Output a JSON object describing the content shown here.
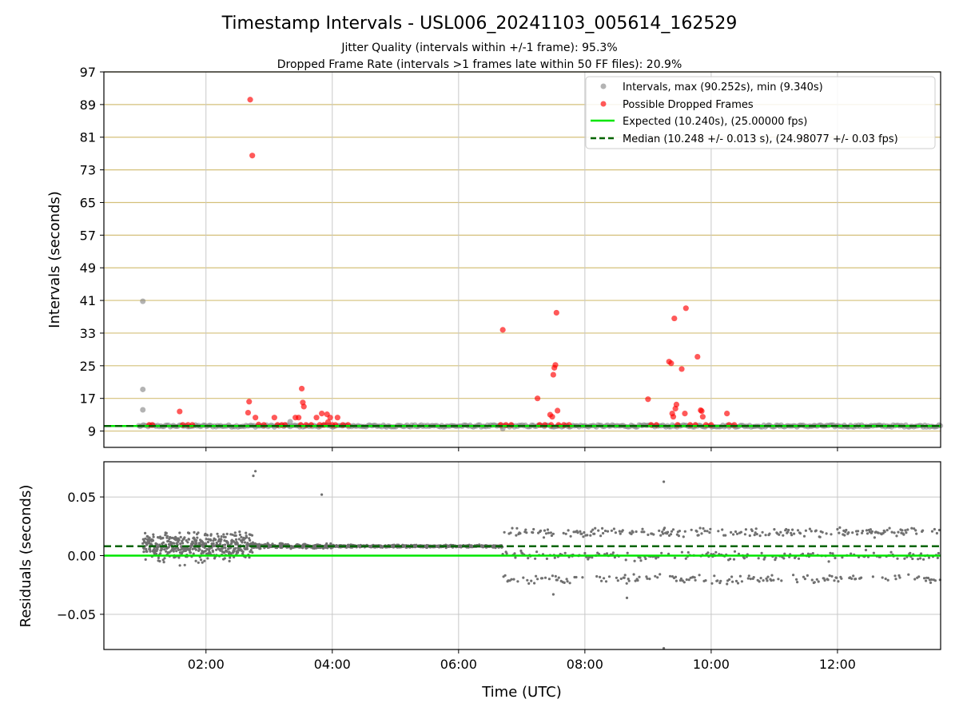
{
  "title": "Timestamp Intervals - USL006_20241103_005614_162529",
  "subtitle_lines": [
    "Jitter Quality (intervals within +/-1 frame): 95.3%",
    "Dropped Frame Rate (intervals >1 frames late within 50 FF files): 20.9%"
  ],
  "xlabel": "Time (UTC)",
  "colors": {
    "intervals": "#808080",
    "dropped": "#ff0000",
    "expected": "#00e600",
    "median": "#006400",
    "hgrid": "#d4c07a",
    "vgrid": "#c8c8c8",
    "residual_points": "#707070"
  },
  "chart_data": [
    {
      "type": "scatter",
      "panel": "top",
      "ylabel": "Intervals (seconds)",
      "ylim": [
        5,
        97
      ],
      "yticks": [
        9,
        17,
        25,
        33,
        41,
        49,
        57,
        65,
        73,
        81,
        89,
        97
      ],
      "xlim": [
        "00:23",
        "13:38"
      ],
      "xticks": [
        "02:00",
        "04:00",
        "06:00",
        "08:00",
        "10:00",
        "12:00"
      ],
      "show_x_tick_labels": false,
      "grid": "horizontal gold lines at y ticks, vertical grey lines at x ticks",
      "legend_position": "top-right",
      "legend": [
        "Intervals, max (90.252s), min (9.340s)",
        "Possible Dropped Frames",
        "Expected (10.240s), (25.00000 fps)",
        "Median (10.248 +/- 0.013 s), (24.98077 +/- 0.03 fps)"
      ],
      "series": [
        {
          "name": "Intervals, max (90.252s), min (9.340s)",
          "style": "grey scatter",
          "baseline": 10.248,
          "x_range": [
            "00:56",
            "13:38"
          ],
          "outliers": [
            [
              "01:00",
              40.8
            ],
            [
              "01:00",
              19.2
            ],
            [
              "01:00",
              14.2
            ],
            [
              "03:20",
              11.3
            ],
            [
              "06:42",
              9.6
            ]
          ]
        },
        {
          "name": "Possible Dropped Frames",
          "style": "red scatter",
          "points": [
            [
              "01:06",
              10.5
            ],
            [
              "01:09",
              10.5
            ],
            [
              "01:35",
              13.8
            ],
            [
              "01:38",
              10.5
            ],
            [
              "01:43",
              10.5
            ],
            [
              "01:47",
              10.5
            ],
            [
              "02:40",
              13.5
            ],
            [
              "02:41",
              16.2
            ],
            [
              "02:42",
              90.2
            ],
            [
              "02:44",
              76.5
            ],
            [
              "02:47",
              12.3
            ],
            [
              "02:50",
              10.6
            ],
            [
              "02:55",
              10.5
            ],
            [
              "03:05",
              12.3
            ],
            [
              "03:08",
              10.5
            ],
            [
              "03:12",
              10.5
            ],
            [
              "03:15",
              10.5
            ],
            [
              "03:25",
              12.3
            ],
            [
              "03:28",
              12.3
            ],
            [
              "03:30",
              10.5
            ],
            [
              "03:31",
              19.4
            ],
            [
              "03:32",
              16.0
            ],
            [
              "03:33",
              15.0
            ],
            [
              "03:35",
              10.5
            ],
            [
              "03:40",
              10.5
            ],
            [
              "03:45",
              12.3
            ],
            [
              "03:48",
              10.5
            ],
            [
              "03:50",
              13.3
            ],
            [
              "03:52",
              10.5
            ],
            [
              "03:55",
              13.1
            ],
            [
              "03:56",
              11.2
            ],
            [
              "03:58",
              12.3
            ],
            [
              "04:00",
              10.5
            ],
            [
              "04:03",
              10.5
            ],
            [
              "04:05",
              12.3
            ],
            [
              "04:10",
              10.5
            ],
            [
              "04:15",
              10.5
            ],
            [
              "06:40",
              10.5
            ],
            [
              "06:42",
              33.8
            ],
            [
              "06:45",
              10.5
            ],
            [
              "06:50",
              10.5
            ],
            [
              "07:15",
              17.0
            ],
            [
              "07:17",
              10.5
            ],
            [
              "07:22",
              10.5
            ],
            [
              "07:27",
              13.0
            ],
            [
              "07:28",
              10.5
            ],
            [
              "07:29",
              12.5
            ],
            [
              "07:30",
              22.8
            ],
            [
              "07:31",
              24.5
            ],
            [
              "07:32",
              25.2
            ],
            [
              "07:33",
              38.0
            ],
            [
              "07:34",
              14.0
            ],
            [
              "07:35",
              10.5
            ],
            [
              "07:40",
              10.5
            ],
            [
              "07:45",
              10.5
            ],
            [
              "09:00",
              16.8
            ],
            [
              "09:03",
              10.5
            ],
            [
              "09:08",
              10.5
            ],
            [
              "09:20",
              26.0
            ],
            [
              "09:22",
              25.6
            ],
            [
              "09:23",
              13.3
            ],
            [
              "09:24",
              12.5
            ],
            [
              "09:25",
              36.6
            ],
            [
              "09:26",
              14.5
            ],
            [
              "09:27",
              15.5
            ],
            [
              "09:28",
              10.5
            ],
            [
              "09:32",
              24.2
            ],
            [
              "09:35",
              13.3
            ],
            [
              "09:36",
              39.1
            ],
            [
              "09:40",
              10.5
            ],
            [
              "09:45",
              10.5
            ],
            [
              "09:47",
              27.2
            ],
            [
              "09:50",
              14.1
            ],
            [
              "09:51",
              13.9
            ],
            [
              "09:52",
              12.5
            ],
            [
              "09:55",
              10.5
            ],
            [
              "10:00",
              10.5
            ],
            [
              "10:15",
              13.3
            ],
            [
              "10:17",
              10.5
            ],
            [
              "10:22",
              10.5
            ]
          ]
        },
        {
          "name": "Expected (10.240s), (25.00000 fps)",
          "style": "solid green line",
          "value": 10.24
        },
        {
          "name": "Median (10.248 +/- 0.013 s), (24.98077 +/- 0.03 fps)",
          "style": "dashed dark green line",
          "value": 10.248
        }
      ]
    },
    {
      "type": "scatter",
      "panel": "bottom",
      "ylabel": "Residuals (seconds)",
      "ylim": [
        -0.08,
        0.08
      ],
      "yticks": [
        -0.05,
        0.0,
        0.05
      ],
      "ytick_labels": [
        "−0.05",
        "0.00",
        "0.05"
      ],
      "xlim": [
        "00:23",
        "13:38"
      ],
      "xticks": [
        "02:00",
        "04:00",
        "06:00",
        "08:00",
        "10:00",
        "12:00"
      ],
      "grid": "horizontal and vertical grey lines at ticks",
      "reference_lines": [
        {
          "value": 0.0,
          "style": "solid green line"
        },
        {
          "value": 0.008,
          "style": "dashed dark green line"
        }
      ],
      "segments": [
        {
          "x_range": [
            "01:00",
            "02:45"
          ],
          "pattern": "wide spread",
          "center": 0.008,
          "spread": 0.022
        },
        {
          "x_range": [
            "02:45",
            "04:00"
          ],
          "pattern": "tight band",
          "center": 0.008,
          "spread": 0.004
        },
        {
          "x_range": [
            "04:00",
            "06:42"
          ],
          "pattern": "very tight band",
          "center": 0.008,
          "spread": 0.002
        },
        {
          "x_range": [
            "06:42",
            "13:38"
          ],
          "pattern": "three quantized bands",
          "levels": [
            -0.02,
            0.0,
            0.02
          ]
        }
      ],
      "outliers": [
        [
          "02:45",
          0.068
        ],
        [
          "02:47",
          0.072
        ],
        [
          "03:50",
          0.052
        ],
        [
          "08:40",
          -0.036
        ],
        [
          "09:15",
          0.063
        ],
        [
          "09:15",
          -0.079
        ],
        [
          "07:30",
          -0.033
        ]
      ]
    }
  ]
}
